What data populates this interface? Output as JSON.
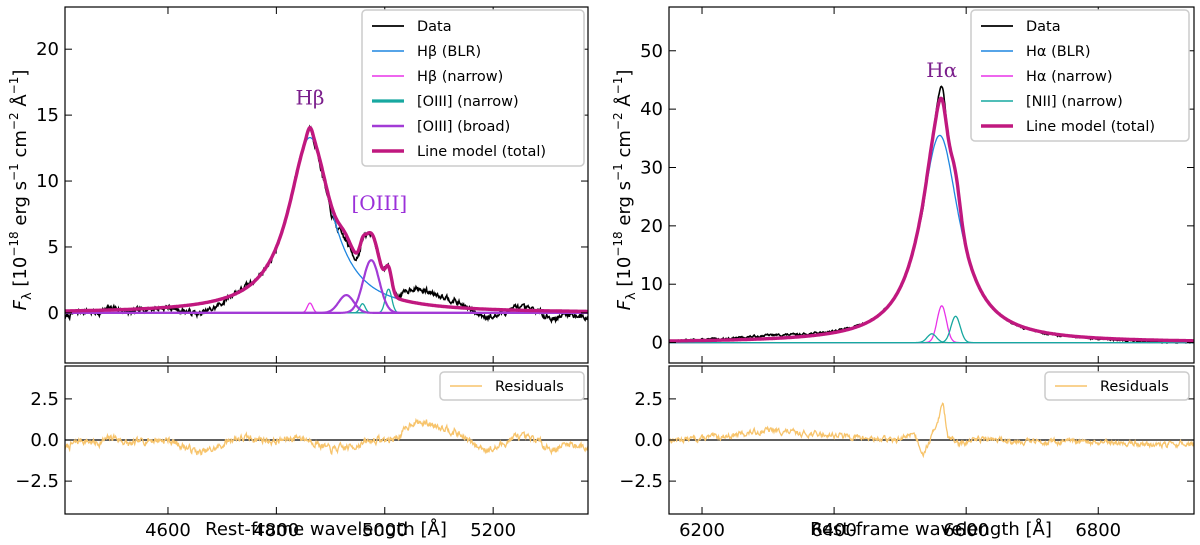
{
  "chart_data": [
    {
      "id": "hbeta",
      "type": "line",
      "xlabel": "Rest-frame wavelength [Å]",
      "ylabel_main": "F",
      "ylabel_sub": "λ",
      "ylabel_rest": " [10",
      "ylabel_exp1": "−18",
      "ylabel_mid": " erg s",
      "ylabel_exp2": "−1",
      "ylabel_mid2": " cm",
      "ylabel_exp3": "−2",
      "ylabel_mid3": " Å",
      "ylabel_exp4": "−1",
      "ylabel_end": "]",
      "xlim": [
        4410,
        5375
      ],
      "ylim": [
        -3.8,
        23.2
      ],
      "xticks": [
        4600,
        4800,
        5000,
        5200
      ],
      "yticks": [
        0,
        5,
        10,
        15,
        20
      ],
      "resid_ylim": [
        -4.5,
        4.5
      ],
      "resid_yticks": [
        -2.5,
        0.0,
        2.5
      ],
      "resid_ytick_labels": [
        "−2.5",
        "0.0",
        "2.5"
      ],
      "legend_position": "top-right",
      "legend": [
        {
          "label": "Data",
          "color": "#000000",
          "width": 1.8
        },
        {
          "label": "Hβ (BLR)",
          "color": "#1f86e0",
          "width": 1.4
        },
        {
          "label": "Hβ (narrow)",
          "color": "#e833e8",
          "width": 1.4
        },
        {
          "label": "[OIII] (narrow)",
          "color": "#17a8a0",
          "width": 3.2
        },
        {
          "label": "[OIII] (broad)",
          "color": "#a23bd6",
          "width": 2.4
        },
        {
          "label": "Line model (total)",
          "color": "#c0187f",
          "width": 3.6
        }
      ],
      "annotations": [
        {
          "text": "Hβ",
          "x": 4862,
          "y": 15.8,
          "color": "#7b1f8c"
        },
        {
          "text": "[OIII]",
          "x": 4990,
          "y": 7.8,
          "color": "#9b30d9"
        }
      ],
      "components": [
        {
          "name": "Hβ (BLR)",
          "color": "#1f86e0",
          "type": "lorentz",
          "center": 4862,
          "amp": 13.3,
          "width": 48
        },
        {
          "name": "Hβ (narrow)",
          "color": "#e833e8",
          "type": "gauss",
          "center": 4862,
          "amp": 0.75,
          "width": 5
        },
        {
          "name": "[OIII] (narrow) 4959",
          "color": "#17a8a0",
          "type": "gauss",
          "center": 4959,
          "amp": 0.7,
          "width": 5
        },
        {
          "name": "[OIII] (narrow) 5007",
          "color": "#17a8a0",
          "type": "gauss",
          "center": 5007,
          "amp": 1.8,
          "width": 6
        },
        {
          "name": "[OIII] (broad) 4959",
          "color": "#a23bd6",
          "type": "gauss",
          "center": 4929,
          "amp": 1.35,
          "width": 14
        },
        {
          "name": "[OIII] (broad) 5007",
          "color": "#a23bd6",
          "type": "gauss",
          "center": 4975,
          "amp": 4.0,
          "width": 15
        }
      ],
      "residuals_label": "Residuals",
      "residuals_color": "#f7c46c",
      "residual_anchors": [
        [
          4410,
          -0.5
        ],
        [
          4440,
          0.0
        ],
        [
          4470,
          -0.2
        ],
        [
          4500,
          0.2
        ],
        [
          4530,
          -0.3
        ],
        [
          4560,
          0.0
        ],
        [
          4600,
          0.0
        ],
        [
          4630,
          -0.4
        ],
        [
          4660,
          -0.8
        ],
        [
          4690,
          -0.5
        ],
        [
          4720,
          0.1
        ],
        [
          4760,
          0.1
        ],
        [
          4800,
          -0.1
        ],
        [
          4840,
          0.2
        ],
        [
          4870,
          -0.1
        ],
        [
          4900,
          -0.6
        ],
        [
          4940,
          -0.4
        ],
        [
          4980,
          0.0
        ],
        [
          5010,
          0.0
        ],
        [
          5030,
          0.3
        ],
        [
          5050,
          1.1
        ],
        [
          5080,
          1.0
        ],
        [
          5110,
          0.8
        ],
        [
          5140,
          0.3
        ],
        [
          5170,
          -0.4
        ],
        [
          5200,
          -0.6
        ],
        [
          5240,
          0.2
        ],
        [
          5280,
          0.0
        ],
        [
          5310,
          -0.6
        ],
        [
          5340,
          -0.2
        ],
        [
          5375,
          -0.5
        ]
      ]
    },
    {
      "id": "halpha",
      "type": "line",
      "xlabel": "Rest-frame wavelength [Å]",
      "xlim": [
        6150,
        6945
      ],
      "ylim": [
        -3.5,
        57.5
      ],
      "xticks": [
        6200,
        6400,
        6600,
        6800
      ],
      "yticks": [
        0,
        10,
        20,
        30,
        40,
        50
      ],
      "resid_ylim": [
        -4.5,
        4.5
      ],
      "resid_yticks": [
        -2.5,
        0.0,
        2.5
      ],
      "resid_ytick_labels": [
        "−2.5",
        "0.0",
        "2.5"
      ],
      "legend_position": "top-right",
      "legend": [
        {
          "label": "Data",
          "color": "#000000",
          "width": 1.8
        },
        {
          "label": "Hα (BLR)",
          "color": "#1f86e0",
          "width": 1.4
        },
        {
          "label": "Hα (narrow)",
          "color": "#e833e8",
          "width": 1.4
        },
        {
          "label": "[NII] (narrow)",
          "color": "#17a8a0",
          "width": 1.4
        },
        {
          "label": "Line model (total)",
          "color": "#c0187f",
          "width": 3.6
        }
      ],
      "annotations": [
        {
          "text": "Hα",
          "x": 6563,
          "y": 45.5,
          "color": "#7b1f8c"
        }
      ],
      "components": [
        {
          "name": "Hα (BLR)",
          "color": "#1f86e0",
          "type": "lorentz",
          "center": 6560,
          "amp": 35.5,
          "width": 36
        },
        {
          "name": "Hα (narrow)",
          "color": "#e833e8",
          "type": "gauss",
          "center": 6563,
          "amp": 6.3,
          "width": 7
        },
        {
          "name": "[NII] (narrow) 6548",
          "color": "#17a8a0",
          "type": "gauss",
          "center": 6548,
          "amp": 1.5,
          "width": 7
        },
        {
          "name": "[NII] (narrow) 6584",
          "color": "#17a8a0",
          "type": "gauss",
          "center": 6584,
          "amp": 4.5,
          "width": 7
        }
      ],
      "residuals_label": "Residuals",
      "residuals_color": "#f7c46c",
      "residual_anchors": [
        [
          6150,
          0.0
        ],
        [
          6200,
          0.1
        ],
        [
          6250,
          0.3
        ],
        [
          6300,
          0.6
        ],
        [
          6350,
          0.4
        ],
        [
          6400,
          0.3
        ],
        [
          6450,
          0.1
        ],
        [
          6500,
          0.0
        ],
        [
          6520,
          0.5
        ],
        [
          6535,
          -0.8
        ],
        [
          6548,
          0.2
        ],
        [
          6560,
          1.6
        ],
        [
          6565,
          2.3
        ],
        [
          6572,
          0.3
        ],
        [
          6590,
          -0.3
        ],
        [
          6620,
          0.1
        ],
        [
          6650,
          0.0
        ],
        [
          6700,
          -0.1
        ],
        [
          6750,
          -0.1
        ],
        [
          6800,
          -0.2
        ],
        [
          6850,
          -0.2
        ],
        [
          6900,
          -0.3
        ],
        [
          6945,
          -0.2
        ]
      ]
    }
  ]
}
